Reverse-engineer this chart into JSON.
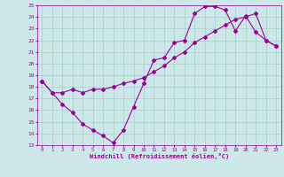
{
  "title": "",
  "xlabel": "Windchill (Refroidissement éolien,°C)",
  "ylabel": "",
  "xlim": [
    -0.5,
    23.5
  ],
  "ylim": [
    13,
    25
  ],
  "xticks": [
    0,
    1,
    2,
    3,
    4,
    5,
    6,
    7,
    8,
    9,
    10,
    11,
    12,
    13,
    14,
    15,
    16,
    17,
    18,
    19,
    20,
    21,
    22,
    23
  ],
  "yticks": [
    13,
    14,
    15,
    16,
    17,
    18,
    19,
    20,
    21,
    22,
    23,
    24,
    25
  ],
  "line1_x": [
    0,
    1,
    2,
    3,
    4,
    5,
    6,
    7,
    8,
    9,
    10,
    11,
    12,
    13,
    14,
    15,
    16,
    17,
    18,
    19,
    20,
    21,
    22,
    23
  ],
  "line1_y": [
    18.5,
    17.5,
    16.5,
    15.8,
    14.8,
    14.3,
    13.8,
    13.2,
    14.3,
    16.3,
    18.3,
    20.3,
    20.5,
    21.8,
    22.0,
    24.3,
    24.9,
    24.9,
    24.6,
    22.8,
    24.1,
    22.7,
    22.0,
    21.5
  ],
  "line2_x": [
    0,
    1,
    2,
    3,
    4,
    5,
    6,
    7,
    8,
    9,
    10,
    11,
    12,
    13,
    14,
    15,
    16,
    17,
    18,
    19,
    20,
    21,
    22,
    23
  ],
  "line2_y": [
    18.5,
    17.5,
    17.5,
    17.8,
    17.5,
    17.8,
    17.8,
    18.0,
    18.3,
    18.5,
    18.8,
    19.3,
    19.8,
    20.5,
    21.0,
    21.8,
    22.3,
    22.8,
    23.3,
    23.8,
    24.0,
    24.3,
    22.0,
    21.5
  ],
  "line_color": "#990099",
  "bg_color": "#cce8e8",
  "grid_color": "#aacccc",
  "marker": "D",
  "markersize": 2.0,
  "linewidth": 0.8
}
